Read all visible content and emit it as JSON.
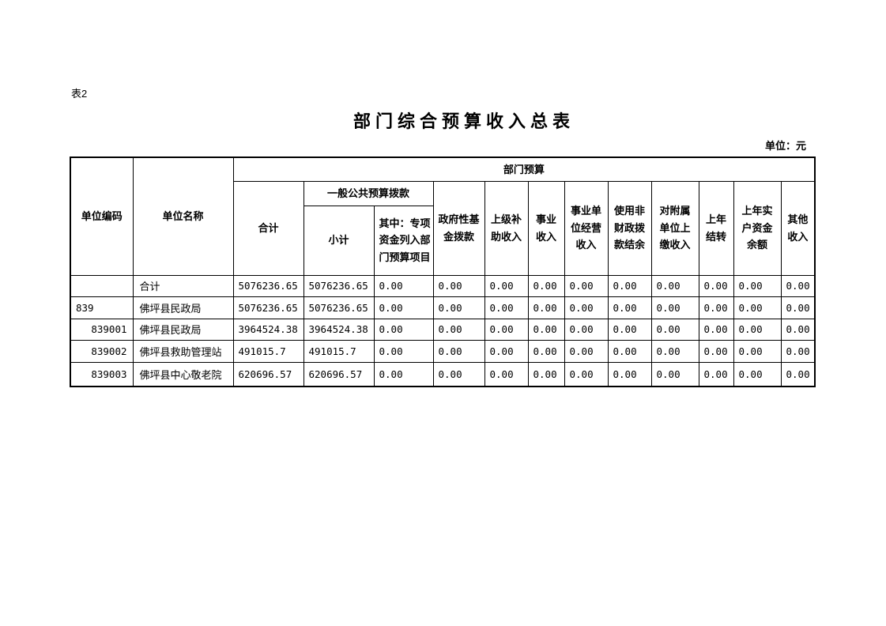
{
  "page": {
    "table_label": "表2",
    "title": "部门综合预算收入总表",
    "unit_note": "单位：元"
  },
  "table": {
    "header": {
      "unit_code": "单位编码",
      "unit_name": "单位名称",
      "dept_budget": "部门预算",
      "total": "合计",
      "general_public_budget": "一般公共预算拨款",
      "subtotal": "小计",
      "special_funds": "其中：专项\n资金列入部\n门预算项目",
      "gov_funds": "政府性基\n金拨款",
      "superior_subsidy": "上级补\n助收入",
      "business_income": "事业\n收入",
      "business_operation_income": "事业单\n位经营\n收入",
      "non_fiscal_balance": "使用非\n财政拨\n款结余",
      "subordinate_remittance": "对附属\n单位上\n缴收入",
      "prev_year_carryover": "上年\n结转",
      "prev_year_real_account": "上年实\n户资金\n余额",
      "other_income": "其他\n收入"
    },
    "rows": [
      {
        "code": "",
        "code_align": "left",
        "name": "合计",
        "values": [
          "5076236.65",
          "5076236.65",
          "0.00",
          "0.00",
          "0.00",
          "0.00",
          "0.00",
          "0.00",
          "0.00",
          "0.00",
          "0.00",
          "0.00"
        ]
      },
      {
        "code": "839",
        "code_align": "left",
        "name": "佛坪县民政局",
        "values": [
          "5076236.65",
          "5076236.65",
          "0.00",
          "0.00",
          "0.00",
          "0.00",
          "0.00",
          "0.00",
          "0.00",
          "0.00",
          "0.00",
          "0.00"
        ]
      },
      {
        "code": "839001",
        "code_align": "right",
        "name": "佛坪县民政局",
        "values": [
          "3964524.38",
          "3964524.38",
          "0.00",
          "0.00",
          "0.00",
          "0.00",
          "0.00",
          "0.00",
          "0.00",
          "0.00",
          "0.00",
          "0.00"
        ]
      },
      {
        "code": "839002",
        "code_align": "right",
        "name": "佛坪县救助管理站",
        "values": [
          "491015.7",
          "491015.7",
          "0.00",
          "0.00",
          "0.00",
          "0.00",
          "0.00",
          "0.00",
          "0.00",
          "0.00",
          "0.00",
          "0.00"
        ]
      },
      {
        "code": "839003",
        "code_align": "right",
        "name": "佛坪县中心敬老院",
        "values": [
          "620696.57",
          "620696.57",
          "0.00",
          "0.00",
          "0.00",
          "0.00",
          "0.00",
          "0.00",
          "0.00",
          "0.00",
          "0.00",
          "0.00"
        ]
      }
    ]
  }
}
